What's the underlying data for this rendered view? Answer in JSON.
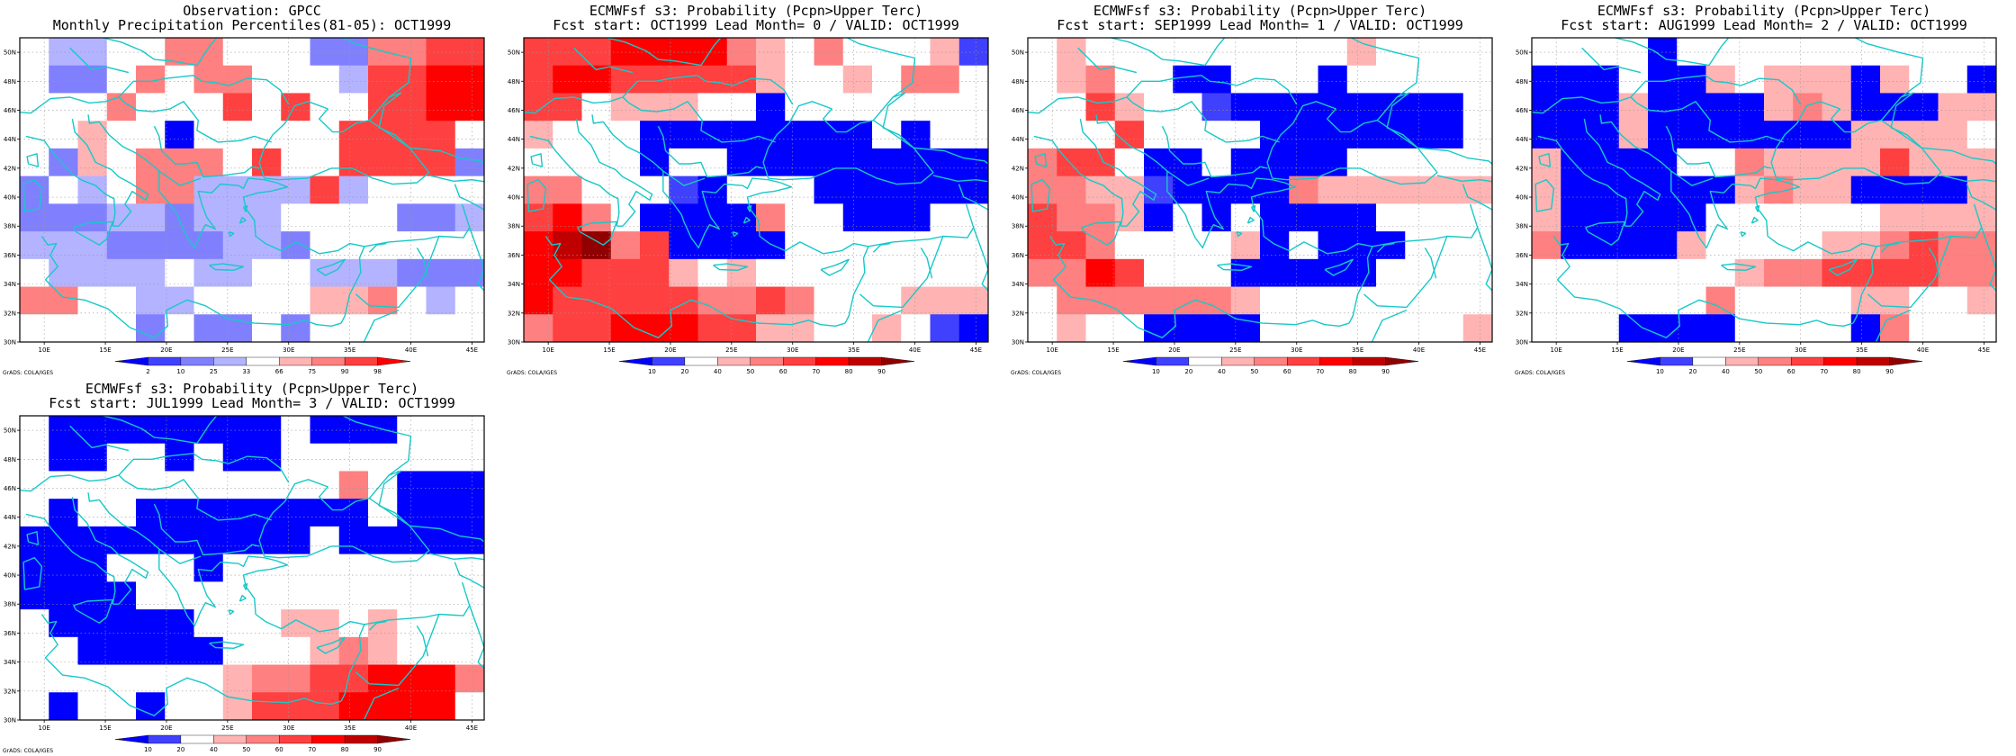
{
  "credit": "GrADS: COLA/IGES",
  "map": {
    "x_labels": [
      "10E",
      "15E",
      "20E",
      "25E",
      "30E",
      "35E",
      "40E",
      "45E"
    ],
    "y_labels": [
      "30N",
      "32N",
      "34N",
      "36N",
      "38N",
      "40N",
      "42N",
      "44N",
      "46N",
      "48N",
      "50N"
    ],
    "gridlines": "dotted",
    "coastline_color": "#18c8c8"
  },
  "palettes": {
    "obs": [
      "#0000ff",
      "#4040ff",
      "#8080ff",
      "#b3b3ff",
      "#ffffff",
      "#ffb3b3",
      "#ff8080",
      "#ff4040",
      "#ff0000"
    ],
    "prob": [
      "#0000ff",
      "#4040ff",
      "#ffffff",
      "#ffb3b3",
      "#ff8080",
      "#ff4040",
      "#ff0000",
      "#c00000",
      "#900000"
    ]
  },
  "panels": [
    {
      "title_line1": "Observation: GPCC",
      "title_line2": "Monthly Precipitation Percentiles(81-05): OCT1999",
      "colorbar_labels": [
        "2",
        "10",
        "25",
        "33",
        "66",
        "75",
        "90",
        "98"
      ],
      "palette": "obs",
      "grid": [
        "4334466444226677",
        "4224646644437788",
        "4446444747447788",
        "4454404444477774",
        "4254666474477772",
        "2434663333734444",
        "2223323334444223",
        "3332222332444444",
        "4333343344333222",
        "6644334444556434",
        "4444242242444444"
      ]
    },
    {
      "title_line1": "ECMWFsf s3: Probability (Pcpn>Upper Terc)",
      "title_line2": "Fcst start: OCT1999  Lead Month= 0 / VALID: OCT1999",
      "colorbar_labels": [
        "10",
        "20",
        "40",
        "50",
        "60",
        "70",
        "80",
        "90"
      ],
      "palette": "prob",
      "grid": [
        "5556666432422231",
        "5665555532232442",
        "5523332202222222",
        "3222000000002022",
        "2222022000000000",
        "4422210222000000",
        "5642000042200022",
        "6784500002222222",
        "6655532322222222",
        "6555554454222333",
        "4556665533223210"
      ]
    },
    {
      "title_line1": "ECMWFsf s3: Probability (Pcpn>Upper Terc)",
      "title_line2": "Fcst start: SEP1999  Lead Month= 1 / VALID: OCT1999",
      "colorbar_labels": [
        "10",
        "20",
        "40",
        "50",
        "60",
        "70",
        "80",
        "90"
      ],
      "palette": "prob",
      "grid": [
        "2322222222232222",
        "2342200222022222",
        "2253221000000002",
        "2225222200000002",
        "4552002000022222",
        "4433100004333333",
        "5443020200002222",
        "5542222302000222",
        "4465222000002222",
        "2444444322222222",
        "2322000022222223"
      ]
    },
    {
      "title_line1": "ECMWFsf s3: Probability (Pcpn>Upper Terc)",
      "title_line2": "Fcst start: AUG1999  Lead Month= 2 / VALID: OCT1999",
      "colorbar_labels": [
        "10",
        "20",
        "40",
        "50",
        "60",
        "70",
        "80",
        "90"
      ],
      "palette": "prob",
      "grid": [
        "2222022222222222",
        "0002003233303220",
        "0003000034300033",
        "0003000000033332",
        "3000022433335333",
        "3000000343300003",
        "3000002222223333",
        "4000032222334544",
        "2222222344555544",
        "2222224222233223",
        "2220000222204222"
      ]
    },
    {
      "title_line1": "ECMWFsf s3: Probability (Pcpn>Upper Terc)",
      "title_line2": "Fcst start: JUL1999  Lead Month= 3 / VALID: OCT1999",
      "colorbar_labels": [
        "10",
        "20",
        "40",
        "50",
        "60",
        "70",
        "80",
        "90"
      ],
      "palette": "prob",
      "grid": [
        "2000000002000222",
        "2002202002222222",
        "2222222222242000",
        "2022000000002000",
        "0000000000200000",
        "0002220222222222",
        "0000222222222222",
        "2000002223323222",
        "2200000222343222",
        "2222222344556664",
        "2022022355566662"
      ]
    }
  ]
}
